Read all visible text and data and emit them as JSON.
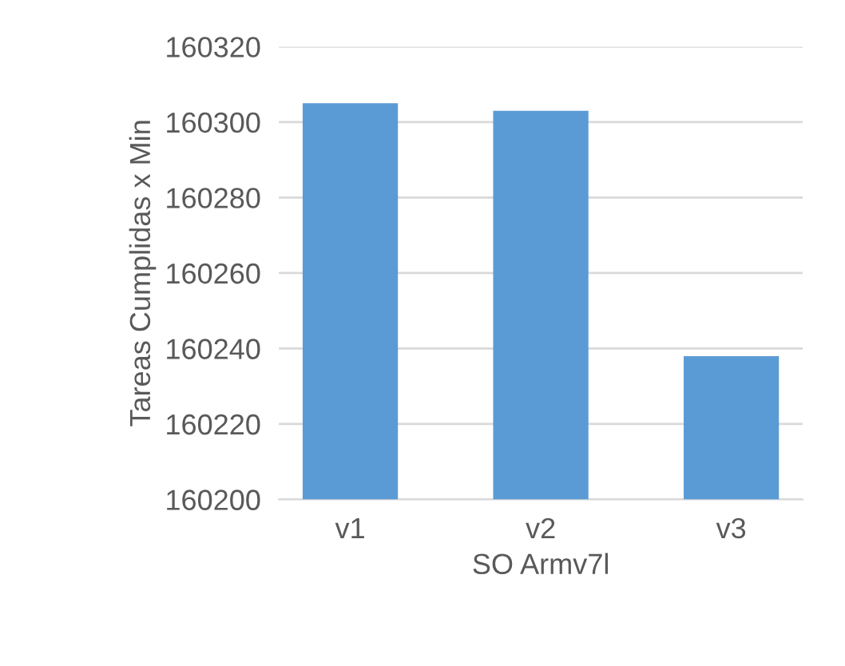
{
  "chart_data": {
    "type": "bar",
    "xlabel": "SO Armv7l",
    "ylabel": "Tareas Cumplidas x Min",
    "categories": [
      "v1",
      "v2",
      "v3"
    ],
    "values": [
      160305,
      160303,
      160238
    ],
    "color": "#5b9bd5",
    "ylim": [
      160200,
      160320
    ],
    "yticks": [
      160200,
      160220,
      160240,
      160260,
      160280,
      160300,
      160320
    ],
    "grid": "y"
  }
}
